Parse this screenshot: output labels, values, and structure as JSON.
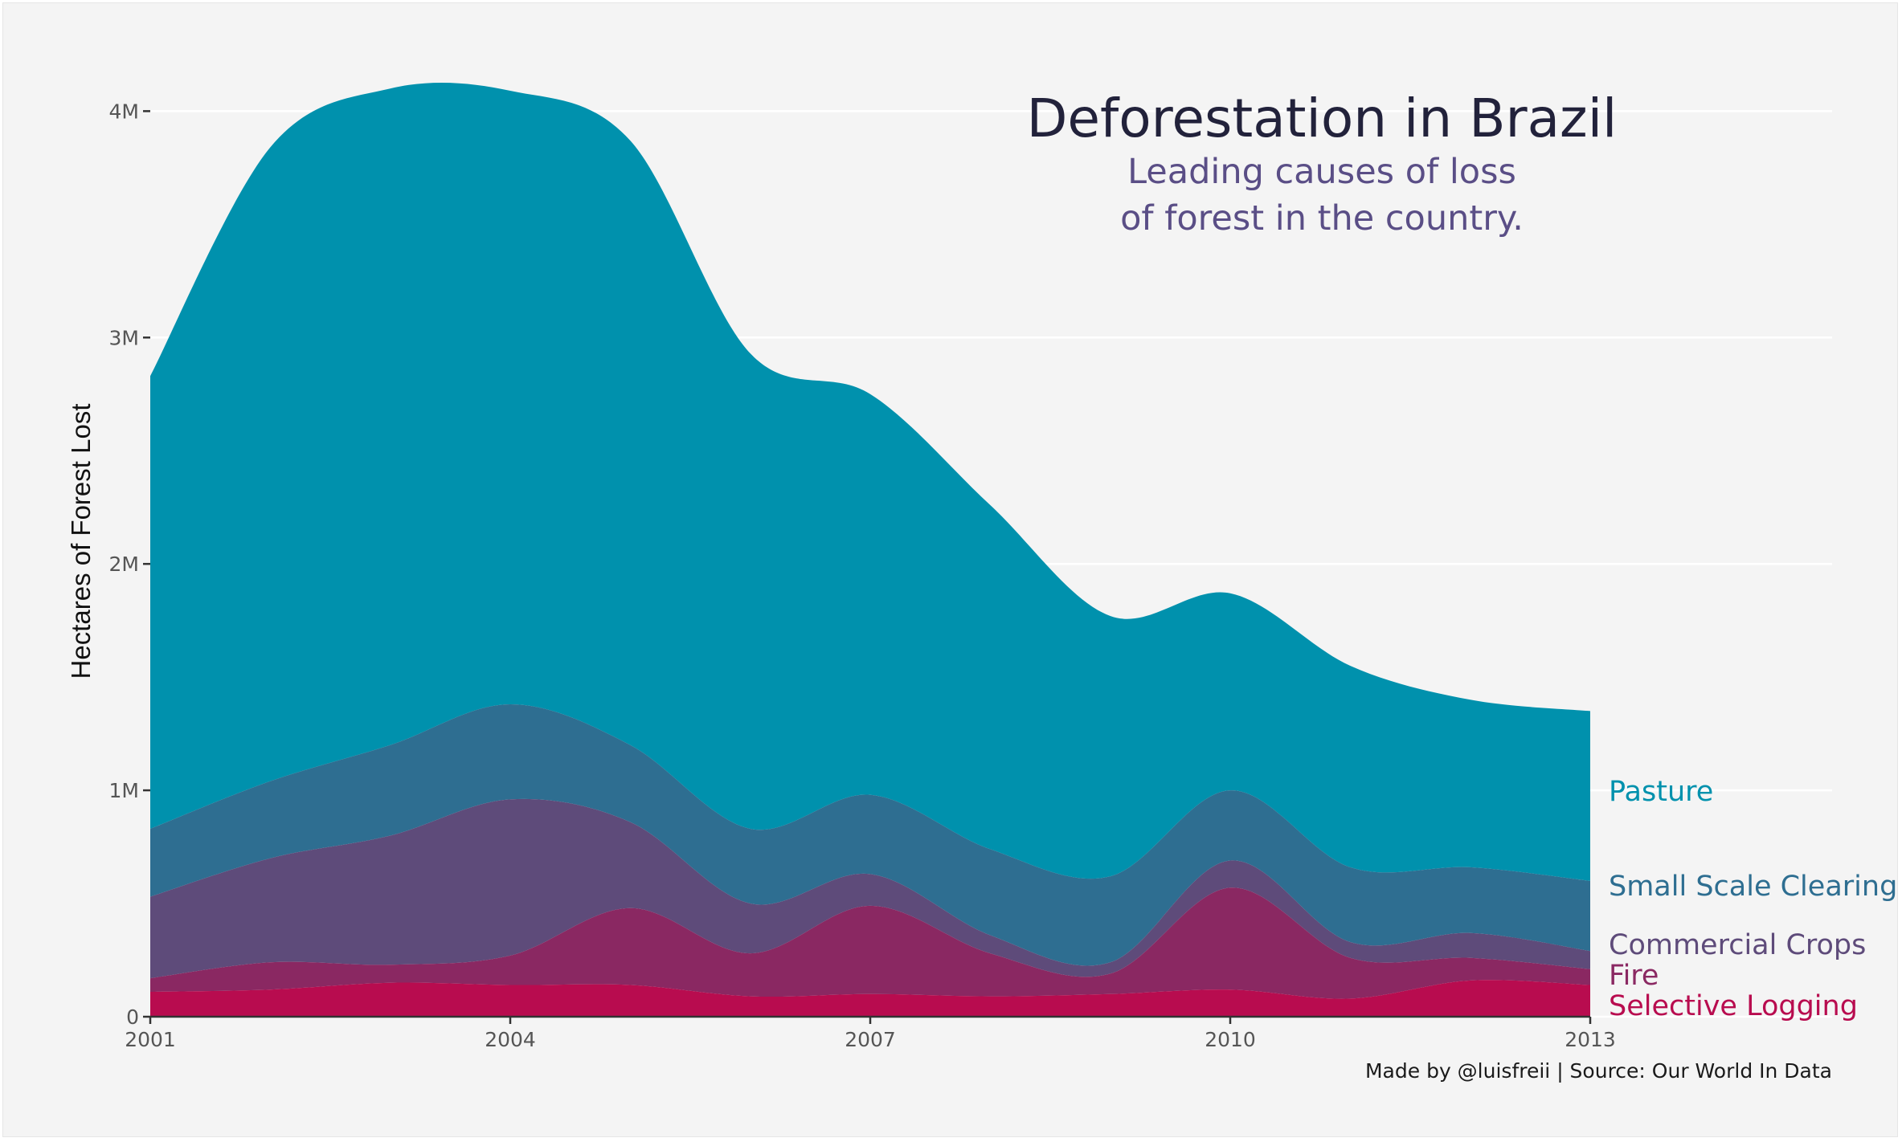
{
  "chart_data": {
    "type": "area",
    "stacked": true,
    "title": "Deforestation in Brazil",
    "subtitle": [
      "Leading causes of loss",
      "of forest in the country."
    ],
    "caption": "Made by @luisfreii | Source: Our World In Data",
    "xlabel": "",
    "ylabel": "Hectares of Forest Lost",
    "x": [
      2001,
      2002,
      2003,
      2004,
      2005,
      2006,
      2007,
      2008,
      2009,
      2010,
      2011,
      2012,
      2013
    ],
    "x_ticks": [
      2001,
      2004,
      2007,
      2010,
      2013
    ],
    "x_tick_labels": [
      "2001",
      "2004",
      "2007",
      "2010",
      "2013"
    ],
    "y_ticks": [
      0,
      1000000,
      2000000,
      3000000,
      4000000
    ],
    "y_tick_labels": [
      "0",
      "1M",
      "2M",
      "3M",
      "4M"
    ],
    "xlim": [
      2001,
      2013
    ],
    "ylim": [
      0,
      4200000
    ],
    "grid": "horizontal",
    "legend": "direct labels at right end",
    "series": [
      {
        "name": "Selective Logging",
        "color": "#b80c4f",
        "values": [
          110000,
          120000,
          150000,
          140000,
          140000,
          90000,
          100000,
          90000,
          100000,
          120000,
          80000,
          160000,
          140000
        ]
      },
      {
        "name": "Fire",
        "color": "#8a2862",
        "values": [
          60000,
          120000,
          80000,
          130000,
          340000,
          190000,
          390000,
          190000,
          90000,
          450000,
          180000,
          100000,
          70000
        ]
      },
      {
        "name": "Commercial Crops",
        "color": "#5e4b7a",
        "values": [
          360000,
          460000,
          570000,
          690000,
          380000,
          220000,
          140000,
          80000,
          50000,
          120000,
          70000,
          110000,
          80000
        ]
      },
      {
        "name": "Small Scale Clearing",
        "color": "#2e6e91",
        "values": [
          300000,
          340000,
          400000,
          420000,
          340000,
          330000,
          350000,
          380000,
          380000,
          310000,
          330000,
          290000,
          310000
        ]
      },
      {
        "name": "Pasture",
        "color": "#0091ad",
        "values": [
          2000000,
          2800000,
          2900000,
          2710000,
          2670000,
          2100000,
          1770000,
          1520000,
          1150000,
          870000,
          890000,
          740000,
          750000
        ]
      }
    ]
  }
}
